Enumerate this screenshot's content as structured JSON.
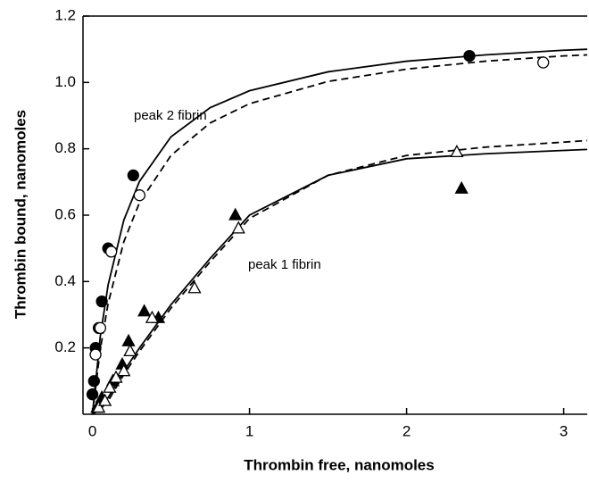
{
  "chart_data": {
    "type": "scatter",
    "xlabel": "Thrombin free, nanomoles",
    "ylabel": "Thrombin bound, nanomoles",
    "xlim": [
      -0.06,
      3.15
    ],
    "ylim": [
      0,
      1.2
    ],
    "xticks": [
      0,
      1,
      2,
      3
    ],
    "yticks": [
      0.2,
      0.4,
      0.6,
      0.8,
      {
        "value": 1,
        "label": "1.0"
      },
      1.2
    ],
    "grid": false,
    "annotations": [
      "peak 2 fibrin",
      "peak 1 fibrin"
    ],
    "series": [
      {
        "mode": "markers",
        "marker": "circle",
        "filled": true,
        "color": "#000000",
        "x": [
          0.0,
          0.01,
          0.02,
          0.04,
          0.06,
          0.1,
          0.26,
          2.4
        ],
        "values": [
          0.06,
          0.1,
          0.2,
          0.26,
          0.34,
          0.5,
          0.72,
          1.08
        ]
      },
      {
        "mode": "markers",
        "marker": "circle",
        "filled": false,
        "color": "#000000",
        "x": [
          0.02,
          0.05,
          0.12,
          0.3,
          2.87
        ],
        "values": [
          0.18,
          0.26,
          0.49,
          0.66,
          1.06
        ]
      },
      {
        "mode": "markers",
        "marker": "triangle",
        "filled": true,
        "color": "#000000",
        "x": [
          0.03,
          0.06,
          0.13,
          0.19,
          0.23,
          0.33,
          0.42,
          0.91,
          2.35
        ],
        "values": [
          0.02,
          0.05,
          0.1,
          0.15,
          0.22,
          0.31,
          0.29,
          0.6,
          0.68
        ]
      },
      {
        "mode": "markers",
        "marker": "triangle",
        "filled": false,
        "color": "#000000",
        "x": [
          0.04,
          0.08,
          0.11,
          0.15,
          0.2,
          0.24,
          0.38,
          0.65,
          0.93,
          2.32
        ],
        "values": [
          0.02,
          0.04,
          0.08,
          0.11,
          0.13,
          0.19,
          0.29,
          0.38,
          0.56,
          0.79
        ]
      },
      {
        "mode": "line",
        "dashed": false,
        "color": "#000000",
        "x": [
          0,
          0.05,
          0.1,
          0.2,
          0.3,
          0.5,
          0.75,
          1,
          1.5,
          2,
          2.5,
          3,
          3.15
        ],
        "values": [
          0,
          0.234,
          0.39,
          0.585,
          0.702,
          0.836,
          0.924,
          0.975,
          1.032,
          1.064,
          1.083,
          1.097,
          1.1
        ]
      },
      {
        "mode": "line",
        "dashed": true,
        "color": "#000000",
        "x": [
          0,
          0.05,
          0.1,
          0.2,
          0.3,
          0.5,
          0.75,
          1,
          1.5,
          2,
          2.5,
          3,
          3.15
        ],
        "values": [
          0,
          0.195,
          0.334,
          0.52,
          0.638,
          0.78,
          0.878,
          0.936,
          1.003,
          1.04,
          1.064,
          1.08,
          1.083
        ]
      },
      {
        "mode": "line",
        "dashed": false,
        "color": "#000000",
        "x": [
          0,
          0.05,
          0.1,
          0.2,
          0.3,
          0.5,
          0.75,
          1,
          1.5,
          2,
          2.5,
          3,
          3.15
        ],
        "values": [
          0,
          0.02,
          0.05,
          0.13,
          0.2,
          0.33,
          0.47,
          0.6,
          0.72,
          0.77,
          0.785,
          0.795,
          0.798
        ]
      },
      {
        "mode": "line",
        "dashed": true,
        "color": "#000000",
        "x": [
          0,
          0.05,
          0.1,
          0.2,
          0.3,
          0.5,
          0.75,
          1,
          1.5,
          2,
          2.5,
          3,
          3.15
        ],
        "values": [
          0,
          0.015,
          0.04,
          0.12,
          0.19,
          0.32,
          0.46,
          0.59,
          0.72,
          0.78,
          0.805,
          0.82,
          0.825
        ]
      }
    ]
  }
}
